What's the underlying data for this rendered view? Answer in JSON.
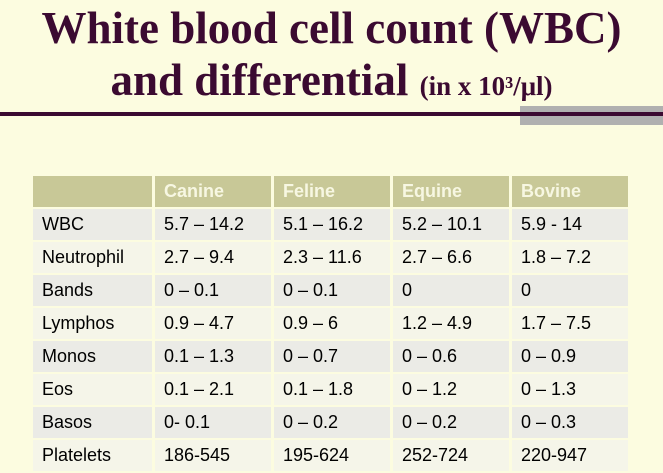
{
  "title": {
    "line1": "White blood cell count (WBC)",
    "line2_main": "and differential",
    "line2_unit": "(in x 10³/μl)"
  },
  "table": {
    "columns": [
      "",
      "Canine",
      "Feline",
      "Equine",
      "Bovine"
    ],
    "rows": [
      {
        "label": "WBC",
        "values": [
          "5.7 – 14.2",
          "5.1 – 16.2",
          "5.2 – 10.1",
          "5.9 - 14"
        ]
      },
      {
        "label": "Neutrophil",
        "values": [
          "2.7 – 9.4",
          "2.3 – 11.6",
          "2.7 – 6.6",
          "1.8 – 7.2"
        ]
      },
      {
        "label": "Bands",
        "values": [
          "0 – 0.1",
          "0 – 0.1",
          "0",
          "0"
        ]
      },
      {
        "label": "Lymphos",
        "values": [
          "0.9 – 4.7",
          "0.9 – 6",
          "1.2 – 4.9",
          "1.7 – 7.5"
        ]
      },
      {
        "label": "Monos",
        "values": [
          "0.1 – 1.3",
          "0 – 0.7",
          "0 – 0.6",
          "0 – 0.9"
        ]
      },
      {
        "label": "Eos",
        "values": [
          "0.1 – 2.1",
          "0.1 – 1.8",
          "0 – 1.2",
          "0 – 1.3"
        ]
      },
      {
        "label": "Basos",
        "values": [
          "0- 0.1",
          "0 – 0.2",
          "0 – 0.2",
          "0 – 0.3"
        ]
      },
      {
        "label": "Platelets",
        "values": [
          "186-545",
          "195-624",
          "252-724",
          "220-947"
        ]
      }
    ]
  },
  "colors": {
    "page_bg": "#FCFCE0",
    "title_text": "#3B0A31",
    "rule": "#3B0A31",
    "rule_shadow": "#B0B0B0",
    "header_bg": "#C8C897",
    "header_text": "#F7F7E2",
    "row_shade_a": "#EBEBE6",
    "row_shade_b": "#F5F5E9",
    "cell_text": "#000000"
  }
}
